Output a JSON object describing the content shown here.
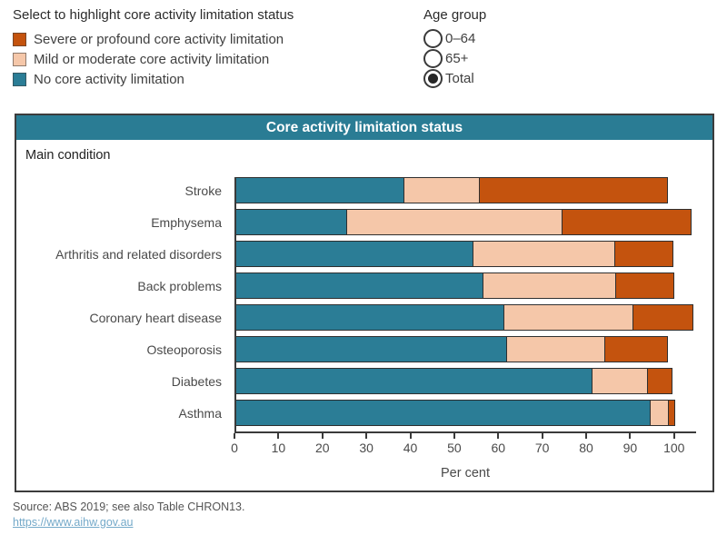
{
  "highlight_legend": {
    "title": "Select to highlight core activity limitation status",
    "items": [
      {
        "key": "severe",
        "label": "Severe or profound core activity limitation",
        "color": "#c4530e"
      },
      {
        "key": "mild",
        "label": "Mild or moderate core activity limitation",
        "color": "#f5c7a9"
      },
      {
        "key": "none",
        "label": "No core activity limitation",
        "color": "#2b7d96"
      }
    ]
  },
  "age_group_legend": {
    "title": "Age group",
    "options": [
      {
        "key": "0-64",
        "label": "0–64",
        "selected": false
      },
      {
        "key": "65plus",
        "label": "65+",
        "selected": false
      },
      {
        "key": "total",
        "label": "Total",
        "selected": true
      }
    ]
  },
  "panel": {
    "title": "Core activity limitation status",
    "row_axis_label": "Main condition"
  },
  "chart_data": {
    "type": "bar",
    "orientation": "horizontal",
    "stacked": true,
    "title": "Core activity limitation status",
    "xlabel": "Per cent",
    "ylabel": "Main condition",
    "xlim": [
      0,
      105
    ],
    "x_ticks": [
      0,
      10,
      20,
      30,
      40,
      50,
      60,
      70,
      80,
      90,
      100
    ],
    "grid": false,
    "legend_position": "top-left",
    "categories": [
      "Stroke",
      "Emphysema",
      "Arthritis and related disorders",
      "Back problems",
      "Coronary heart disease",
      "Osteoporosis",
      "Diabetes",
      "Asthma"
    ],
    "series": [
      {
        "key": "none",
        "name": "No core activity limitation",
        "color": "#2b7d96",
        "values": [
          38.7,
          25.7,
          54.3,
          56.6,
          61.3,
          62.0,
          81.4,
          94.6
        ]
      },
      {
        "key": "mild",
        "name": "Mild or moderate core activity limitation",
        "color": "#f5c7a9",
        "values": [
          17.4,
          49.2,
          32.6,
          30.5,
          29.6,
          22.5,
          12.8,
          4.5
        ]
      },
      {
        "key": "severe",
        "name": "Severe or profound core activity limitation",
        "color": "#c4530e",
        "values": [
          42.9,
          29.6,
          13.4,
          13.3,
          14.0,
          14.6,
          5.8,
          1.6
        ]
      }
    ]
  },
  "footer": {
    "source_text": "Source: ABS 2019; see also Table CHRON13.",
    "link_text": "https://www.aihw.gov.au"
  },
  "colors": {
    "teal": "#2b7d96",
    "peach": "#f5c7a9",
    "orange": "#c4530e",
    "title_bar": "#2a7c94",
    "axis": "#3a3a3a",
    "link": "#74a9c9"
  }
}
